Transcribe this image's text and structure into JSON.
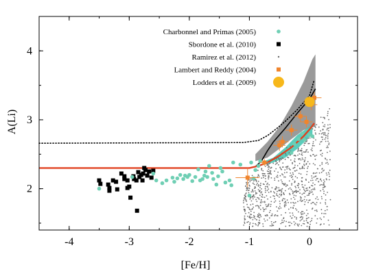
{
  "chart_data": {
    "type": "scatter",
    "xlabel": "[Fe/H]",
    "ylabel": "A(Li)",
    "xlim": [
      -4.5,
      0.8
    ],
    "ylim": [
      1.4,
      4.5
    ],
    "xticks": [
      -4,
      -3,
      -2,
      -1,
      0
    ],
    "xtick_labels": [
      "-4",
      "-3",
      "-2",
      "-1",
      "0"
    ],
    "yticks": [
      2,
      3,
      4
    ],
    "ytick_labels": [
      "2",
      "3",
      "4"
    ],
    "grid": false,
    "legend_position": "top-right",
    "legend": [
      {
        "label": "Charbonnel and Primas (2005)",
        "color": "#6fcfb4",
        "marker": "circle"
      },
      {
        "label": "Sbordone et al. (2010)",
        "color": "#000000",
        "marker": "square"
      },
      {
        "label": "Ramirez et al. (2012)",
        "color": "#666666",
        "marker": "dot"
      },
      {
        "label": "Lambert and Reddy (2004)",
        "color": "#f0852d",
        "marker": "square"
      },
      {
        "label": "Lodders et al. (2009)",
        "color": "#f7b81b",
        "marker": "big-circle"
      }
    ],
    "series": [
      {
        "name": "Sbordone et al. (2010)",
        "color": "#000000",
        "points": [
          [
            -3.5,
            2.12
          ],
          [
            -3.48,
            2.07
          ],
          [
            -3.35,
            2.06
          ],
          [
            -3.33,
            1.97
          ],
          [
            -3.33,
            2.01
          ],
          [
            -3.27,
            2.12
          ],
          [
            -3.22,
            2.1
          ],
          [
            -3.2,
            1.99
          ],
          [
            -3.13,
            2.22
          ],
          [
            -3.08,
            2.18
          ],
          [
            -3.08,
            2.14
          ],
          [
            -3.03,
            2.12
          ],
          [
            -3.03,
            2.01
          ],
          [
            -3.0,
            2.03
          ],
          [
            -2.98,
            1.87
          ],
          [
            -2.93,
            2.18
          ],
          [
            -2.92,
            2.14
          ],
          [
            -2.88,
            2.12
          ],
          [
            -2.87,
            1.68
          ],
          [
            -2.85,
            2.24
          ],
          [
            -2.83,
            2.17
          ],
          [
            -2.8,
            2.2
          ],
          [
            -2.78,
            2.12
          ],
          [
            -2.77,
            2.22
          ],
          [
            -2.75,
            2.3
          ],
          [
            -2.73,
            2.27
          ],
          [
            -2.7,
            2.19
          ],
          [
            -2.67,
            2.25
          ],
          [
            -2.63,
            2.16
          ],
          [
            -2.6,
            2.26
          ]
        ]
      },
      {
        "name": "Charbonnel and Primas (2005)",
        "color": "#6fcfb4",
        "points": [
          [
            -3.5,
            2.0
          ],
          [
            -2.95,
            2.17
          ],
          [
            -2.6,
            2.22
          ],
          [
            -2.55,
            2.12
          ],
          [
            -2.45,
            2.08
          ],
          [
            -2.38,
            2.12
          ],
          [
            -2.28,
            2.16
          ],
          [
            -2.25,
            2.1
          ],
          [
            -2.2,
            2.15
          ],
          [
            -2.15,
            2.2
          ],
          [
            -2.1,
            2.14
          ],
          [
            -2.07,
            2.19
          ],
          [
            -2.03,
            2.17
          ],
          [
            -2.0,
            2.2
          ],
          [
            -1.95,
            2.11
          ],
          [
            -1.9,
            2.17
          ],
          [
            -1.85,
            2.28
          ],
          [
            -1.82,
            2.12
          ],
          [
            -1.78,
            2.14
          ],
          [
            -1.75,
            2.19
          ],
          [
            -1.73,
            2.25
          ],
          [
            -1.7,
            2.17
          ],
          [
            -1.67,
            2.33
          ],
          [
            -1.62,
            2.23
          ],
          [
            -1.6,
            2.14
          ],
          [
            -1.55,
            2.06
          ],
          [
            -1.52,
            2.18
          ],
          [
            -1.48,
            2.3
          ],
          [
            -1.45,
            2.25
          ],
          [
            -1.4,
            2.09
          ],
          [
            -1.33,
            2.12
          ],
          [
            -1.3,
            2.05
          ],
          [
            -1.27,
            2.38
          ],
          [
            -1.15,
            2.35
          ],
          [
            -1.0,
            1.9
          ],
          [
            -0.97,
            2.38
          ],
          [
            -0.93,
            2.15
          ],
          [
            -0.9,
            2.27
          ],
          [
            -0.85,
            2.33
          ],
          [
            -0.82,
            2.4
          ],
          [
            -0.3,
            2.52
          ],
          [
            -0.25,
            2.65
          ],
          [
            -0.18,
            2.72
          ],
          [
            -0.12,
            2.8
          ],
          [
            -0.08,
            2.71
          ],
          [
            0.0,
            2.78
          ],
          [
            0.05,
            2.76
          ]
        ]
      },
      {
        "name": "Lambert and Reddy (2004)",
        "color": "#f0852d",
        "points": [
          {
            "x": -1.03,
            "y": 2.16,
            "xerr": 0.2,
            "yerr": 0.14
          },
          {
            "x": -0.75,
            "y": 2.38,
            "xerr": 0.07,
            "yerr": 0.05
          },
          {
            "x": -0.5,
            "y": 2.63,
            "xerr": 0.1,
            "yerr": 0.08
          },
          {
            "x": -0.45,
            "y": 2.68,
            "xerr": 0.1,
            "yerr": 0.08
          },
          {
            "x": -0.3,
            "y": 2.85,
            "xerr": 0.1,
            "yerr": 0.08
          },
          {
            "x": -0.15,
            "y": 3.05,
            "xerr": 0.1,
            "yerr": 0.08
          },
          {
            "x": -0.05,
            "y": 2.97,
            "xerr": 0.1,
            "yerr": 0.08
          },
          {
            "x": 0.03,
            "y": 3.22,
            "xerr": 0.1,
            "yerr": 0.08
          },
          {
            "x": 0.08,
            "y": 3.32,
            "xerr": 0.12,
            "yerr": 0.08
          }
        ]
      },
      {
        "name": "Lodders et al. (2009)",
        "color": "#f7b81b",
        "points": [
          [
            0.0,
            3.26
          ]
        ]
      }
    ],
    "ramirez_cloud": {
      "name": "Ramirez et al. (2012)",
      "color": "#6b6b6b",
      "approx_count": 900,
      "x_range": [
        -1.1,
        0.35
      ],
      "y_range": [
        1.45,
        3.4
      ]
    },
    "model_band": {
      "color": "#9a9a9a",
      "upper": [
        [
          -0.9,
          2.5
        ],
        [
          -0.7,
          2.68
        ],
        [
          -0.5,
          2.9
        ],
        [
          -0.3,
          3.2
        ],
        [
          -0.1,
          3.55
        ],
        [
          0.05,
          3.88
        ],
        [
          0.1,
          3.95
        ]
      ],
      "lower": [
        [
          0.1,
          2.9
        ],
        [
          0.0,
          2.88
        ],
        [
          -0.1,
          2.85
        ],
        [
          -0.3,
          2.72
        ],
        [
          -0.5,
          2.58
        ],
        [
          -0.7,
          2.45
        ],
        [
          -0.9,
          2.4
        ]
      ]
    },
    "cyan_band": {
      "color": "#3fc4b0",
      "upper": [
        [
          -0.78,
          2.39
        ],
        [
          -0.6,
          2.45
        ],
        [
          -0.4,
          2.6
        ],
        [
          -0.2,
          2.78
        ],
        [
          0.0,
          2.9
        ],
        [
          0.05,
          2.94
        ]
      ],
      "lower": [
        [
          0.05,
          2.78
        ],
        [
          0.0,
          2.75
        ],
        [
          -0.2,
          2.58
        ],
        [
          -0.4,
          2.45
        ],
        [
          -0.6,
          2.38
        ],
        [
          -0.78,
          2.34
        ]
      ]
    },
    "lines": [
      {
        "name": "black-model",
        "color": "#000000",
        "points": [
          [
            -4.5,
            2.3
          ],
          [
            -1.0,
            2.3
          ],
          [
            -0.9,
            2.32
          ],
          [
            -0.8,
            2.4
          ],
          [
            -0.7,
            2.55
          ],
          [
            -0.6,
            2.68
          ],
          [
            -0.4,
            2.88
          ],
          [
            -0.2,
            3.1
          ],
          [
            0.0,
            3.3
          ],
          [
            0.1,
            3.45
          ]
        ]
      },
      {
        "name": "red-model",
        "color": "#e0401f",
        "points": [
          [
            -4.5,
            2.3
          ],
          [
            -1.0,
            2.3
          ],
          [
            -0.85,
            2.33
          ],
          [
            -0.7,
            2.38
          ],
          [
            -0.5,
            2.48
          ],
          [
            -0.3,
            2.6
          ],
          [
            -0.1,
            2.76
          ],
          [
            0.0,
            2.86
          ],
          [
            0.08,
            2.95
          ]
        ]
      },
      {
        "name": "dotted-model",
        "color": "#000000",
        "dotted": true,
        "points": [
          [
            -4.5,
            2.66
          ],
          [
            -1.1,
            2.67
          ],
          [
            -0.85,
            2.7
          ],
          [
            -0.7,
            2.77
          ],
          [
            -0.55,
            2.87
          ],
          [
            -0.4,
            2.98
          ],
          [
            -0.2,
            3.15
          ],
          [
            0.0,
            3.35
          ],
          [
            0.08,
            3.58
          ]
        ]
      }
    ]
  }
}
